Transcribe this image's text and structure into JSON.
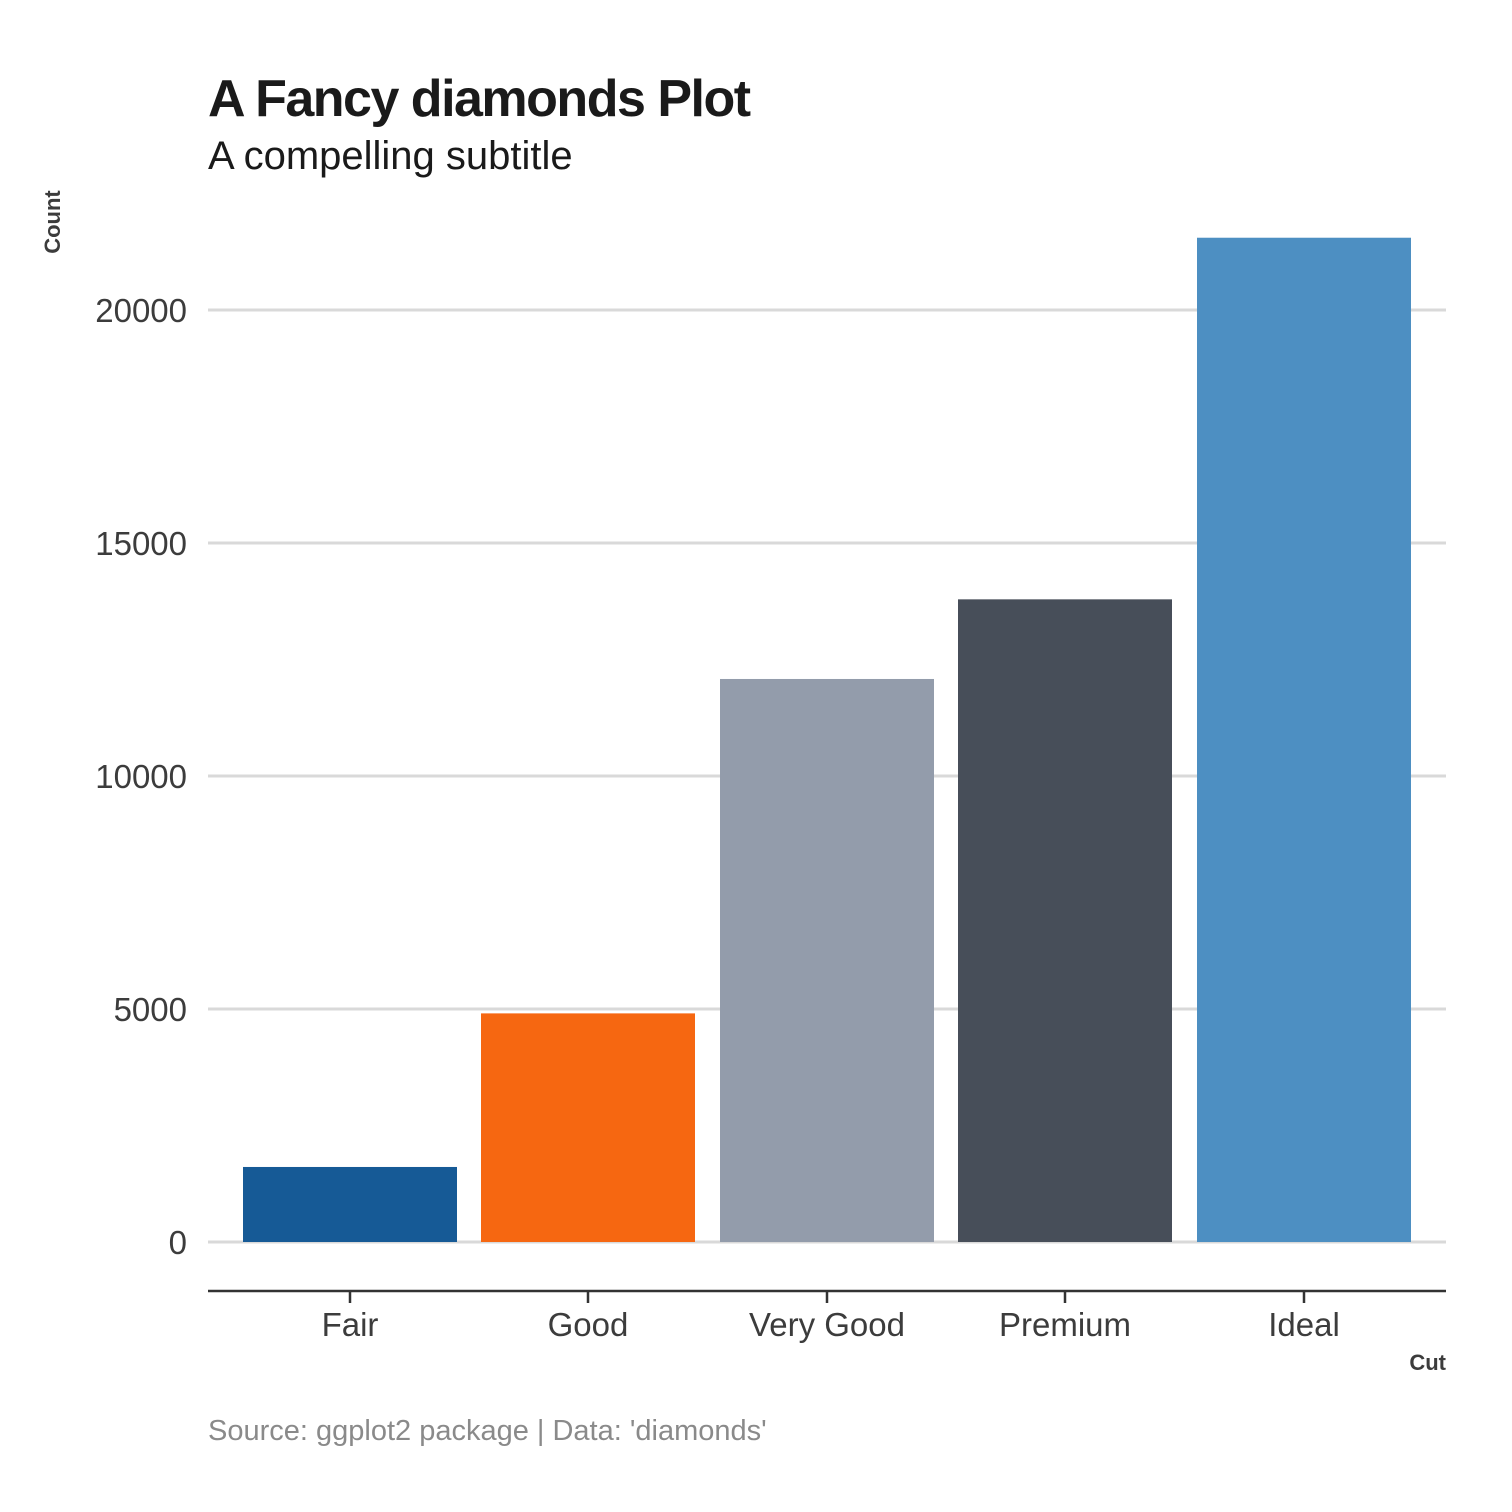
{
  "chart_data": {
    "type": "bar",
    "title": "A Fancy diamonds Plot",
    "subtitle": "A compelling subtitle",
    "xlabel": "Cut",
    "ylabel": "Count",
    "caption": "Source: ggplot2 package | Data: 'diamonds'",
    "categories": [
      "Fair",
      "Good",
      "Very Good",
      "Premium",
      "Ideal"
    ],
    "values": [
      1610,
      4906,
      12082,
      13791,
      21551
    ],
    "colors": [
      "#165a96",
      "#f66711",
      "#939cab",
      "#474e59",
      "#4d8fc2"
    ],
    "ylim": [
      0,
      22000
    ],
    "yticks": [
      0,
      5000,
      10000,
      15000,
      20000
    ],
    "ytick_labels": [
      "0",
      "5000",
      "10000",
      "15000",
      "20000"
    ],
    "grid": "horizontal major",
    "legend": "none"
  }
}
